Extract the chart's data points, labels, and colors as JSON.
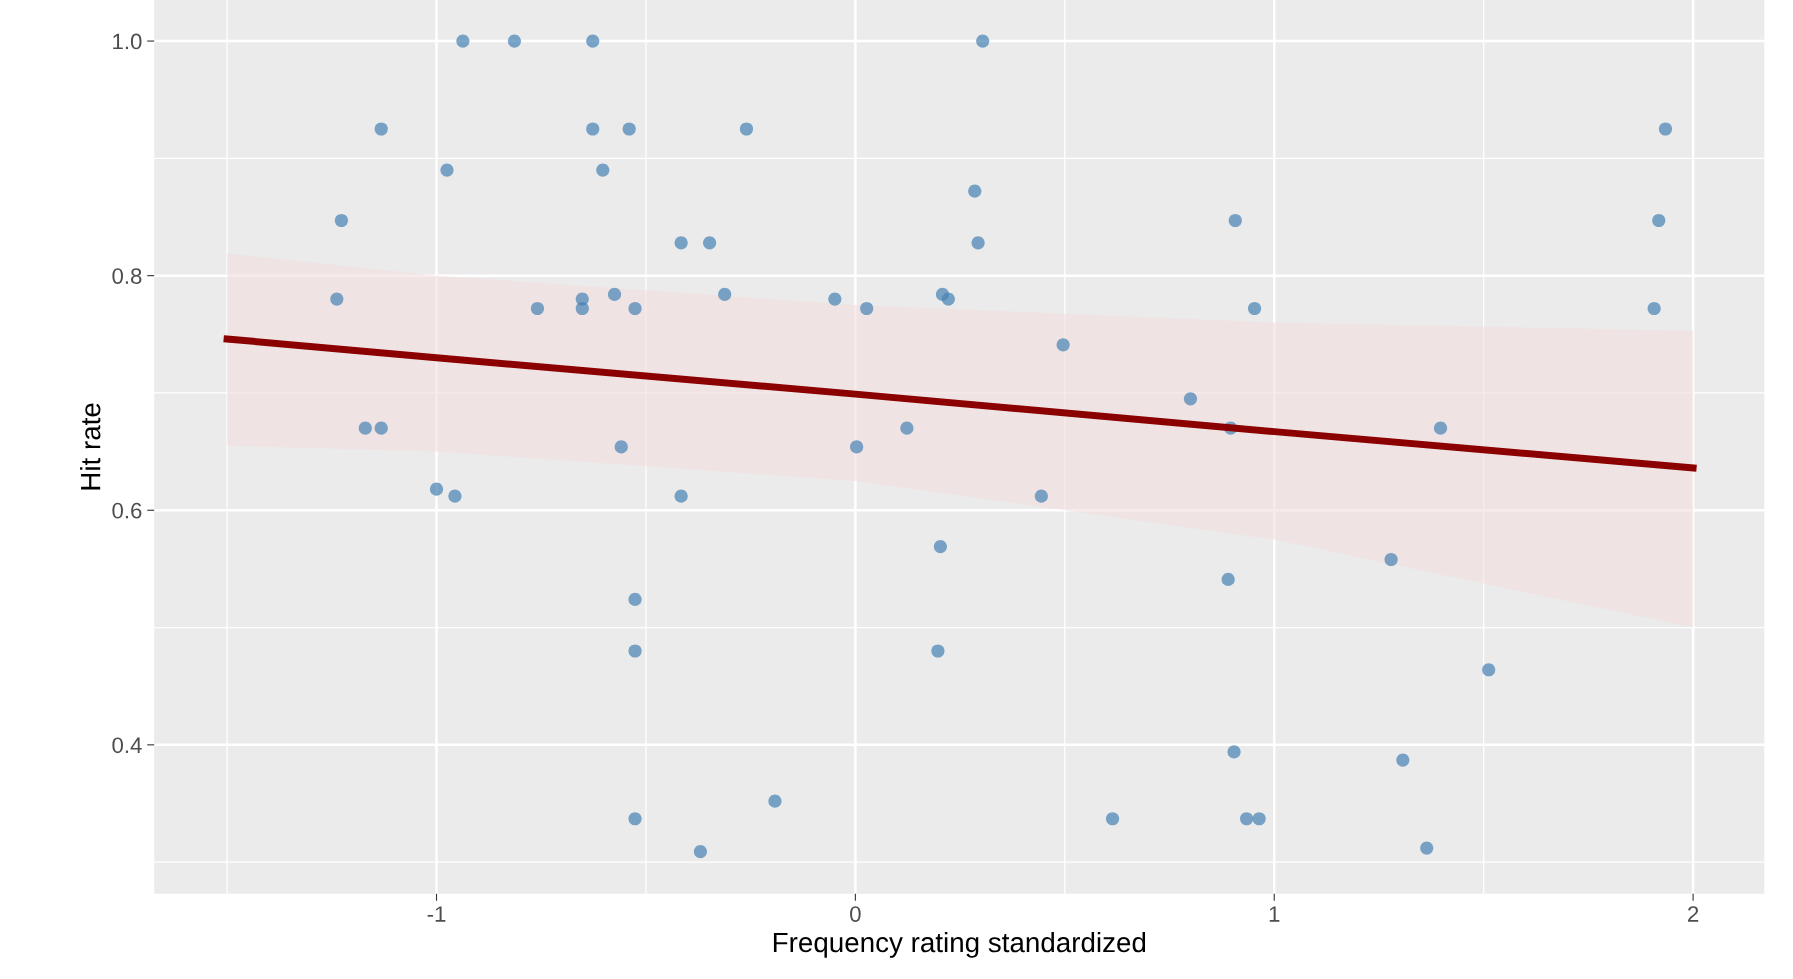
{
  "chart_data": {
    "type": "scatter",
    "xlabel": "Frequency rating standardized",
    "ylabel": "Hit rate",
    "xlim": [
      -1.674,
      2.17
    ],
    "ylim": [
      0.273,
      1.035
    ],
    "xticks": [
      -1,
      0,
      1,
      2
    ],
    "yticks": [
      {
        "value": 0.4,
        "label": "0.4"
      },
      {
        "value": 0.6,
        "label": "0.6"
      },
      {
        "value": 0.8,
        "label": "0.8"
      },
      {
        "value": 1.0,
        "label": "1.0"
      }
    ],
    "grid": true,
    "series": [
      {
        "color": "#4682b4",
        "marker": "circle",
        "x": [
          -1.227,
          -1.238,
          -1.132,
          -1.17,
          -1.132,
          -1.0,
          -0.956,
          -0.975,
          -0.937,
          -0.814,
          -0.759,
          -0.652,
          -0.652,
          -0.627,
          -0.627,
          -0.603,
          -0.575,
          -0.559,
          -0.54,
          -0.526,
          -0.526,
          -0.526,
          -0.526,
          -0.416,
          -0.416,
          -0.37,
          -0.348,
          -0.312,
          -0.26,
          -0.192,
          -0.049,
          0.003,
          0.027,
          0.123,
          0.203,
          0.197,
          0.208,
          0.222,
          0.285,
          0.293,
          0.304,
          0.444,
          0.496,
          0.614,
          0.8,
          0.89,
          0.896,
          0.907,
          0.904,
          0.953,
          0.934,
          0.964,
          1.279,
          1.307,
          1.364,
          1.397,
          1.512,
          1.907,
          1.918,
          1.934
        ],
        "values": [
          0.847,
          0.78,
          0.925,
          0.67,
          0.67,
          0.618,
          0.612,
          0.89,
          1.0,
          1.0,
          0.772,
          0.78,
          0.772,
          1.0,
          0.925,
          0.89,
          0.784,
          0.654,
          0.925,
          0.772,
          0.524,
          0.48,
          0.337,
          0.828,
          0.612,
          0.309,
          0.828,
          0.784,
          0.925,
          0.352,
          0.78,
          0.654,
          0.772,
          0.67,
          0.569,
          0.48,
          0.784,
          0.78,
          0.872,
          0.828,
          1.0,
          0.612,
          0.741,
          0.337,
          0.695,
          0.541,
          0.67,
          0.847,
          0.394,
          0.772,
          0.337,
          0.337,
          0.558,
          0.387,
          0.312,
          0.67,
          0.464,
          0.772,
          0.847,
          0.925
        ]
      },
      {
        "type": "line",
        "color": "#8b0000",
        "x": [
          -1.5,
          -1,
          0,
          1,
          2
        ],
        "values": [
          0.746,
          0.73,
          0.699,
          0.667,
          0.636
        ],
        "lower": [
          0.655,
          0.65,
          0.625,
          0.575,
          0.5
        ],
        "upper": [
          0.819,
          0.8,
          0.775,
          0.76,
          0.753
        ]
      }
    ]
  }
}
